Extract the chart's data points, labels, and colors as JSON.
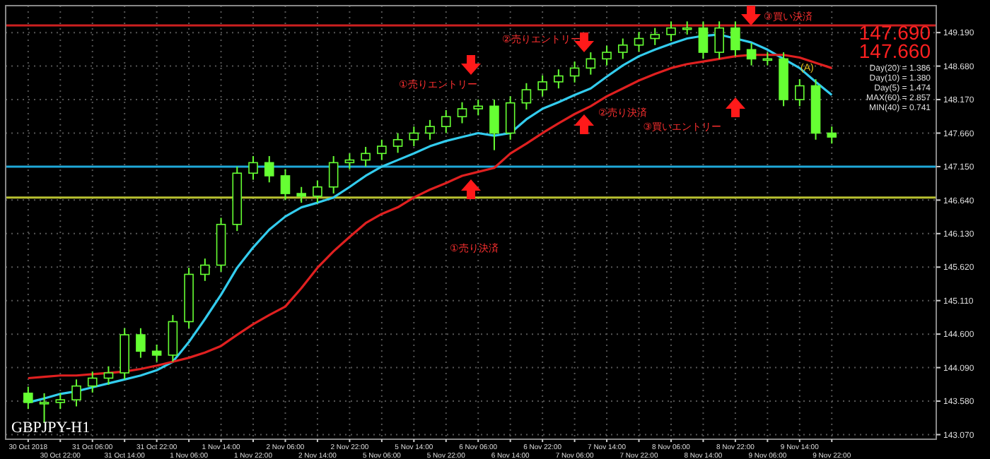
{
  "chart_data": {
    "type": "candlestick",
    "title": "GBPJPY-H1",
    "color": "#66ff33",
    "categories": [
      "30 Oct 2018",
      null,
      "30 Oct 22:00",
      null,
      "31 Oct 06:00",
      null,
      "31 Oct 14:00",
      null,
      "31 Oct 22:00",
      null,
      "1 Nov 06:00",
      null,
      "1 Nov 14:00",
      null,
      "1 Nov 22:00",
      null,
      "2 Nov 06:00",
      null,
      "2 Nov 14:00",
      null,
      "2 Nov 22:00",
      null,
      "5 Nov 06:00",
      null,
      "5 Nov 14:00",
      null,
      "5 Nov 22:00",
      null,
      "6 Nov 06:00",
      null,
      "6 Nov 14:00",
      null,
      "6 Nov 22:00",
      null,
      "7 Nov 06:00",
      null,
      "7 Nov 14:00",
      null,
      "7 Nov 22:00",
      null,
      "8 Nov 06:00",
      null,
      "8 Nov 14:00",
      null,
      "8 Nov 22:00",
      null,
      "9 Nov 06:00",
      null,
      "9 Nov 14:00",
      null,
      "9 Nov 22:00",
      null,
      null,
      null,
      null,
      null,
      null
    ],
    "ohlc": [
      [
        143.7,
        143.8,
        143.46,
        143.56
      ],
      [
        143.56,
        143.7,
        143.25,
        143.56
      ],
      [
        143.56,
        143.7,
        143.46,
        143.6
      ],
      [
        143.6,
        143.91,
        143.5,
        143.81
      ],
      [
        143.81,
        144.03,
        143.71,
        143.93
      ],
      [
        143.93,
        144.11,
        143.83,
        144.01
      ],
      [
        144.01,
        144.69,
        143.91,
        144.59
      ],
      [
        144.59,
        144.69,
        144.24,
        144.34
      ],
      [
        144.34,
        144.44,
        144.18,
        144.28
      ],
      [
        144.28,
        144.89,
        144.18,
        144.79
      ],
      [
        144.79,
        145.61,
        144.69,
        145.51
      ],
      [
        145.51,
        145.75,
        145.41,
        145.65
      ],
      [
        145.65,
        146.37,
        145.55,
        146.27
      ],
      [
        146.27,
        147.15,
        146.17,
        147.05
      ],
      [
        147.05,
        147.31,
        146.95,
        147.21
      ],
      [
        147.21,
        147.31,
        146.91,
        147.01
      ],
      [
        147.01,
        147.11,
        146.64,
        146.74
      ],
      [
        146.74,
        146.84,
        146.6,
        146.7
      ],
      [
        146.7,
        146.94,
        146.6,
        146.84
      ],
      [
        146.84,
        147.31,
        146.74,
        147.21
      ],
      [
        147.21,
        147.35,
        147.11,
        147.25
      ],
      [
        147.25,
        147.45,
        147.15,
        147.35
      ],
      [
        147.35,
        147.56,
        147.25,
        147.46
      ],
      [
        147.46,
        147.66,
        147.36,
        147.56
      ],
      [
        147.56,
        147.76,
        147.46,
        147.66
      ],
      [
        147.66,
        147.86,
        147.56,
        147.76
      ],
      [
        147.76,
        148.01,
        147.66,
        147.91
      ],
      [
        147.91,
        148.13,
        147.81,
        148.03
      ],
      [
        148.03,
        148.17,
        147.93,
        148.07
      ],
      [
        148.07,
        148.17,
        147.4,
        147.66
      ],
      [
        147.66,
        148.22,
        147.56,
        148.12
      ],
      [
        148.12,
        148.42,
        148.02,
        148.32
      ],
      [
        148.32,
        148.54,
        148.22,
        148.44
      ],
      [
        148.44,
        148.63,
        148.34,
        148.53
      ],
      [
        148.53,
        148.75,
        148.43,
        148.65
      ],
      [
        148.65,
        148.89,
        148.55,
        148.79
      ],
      [
        148.79,
        148.99,
        148.69,
        148.89
      ],
      [
        148.89,
        149.1,
        148.79,
        149.0
      ],
      [
        149.0,
        149.2,
        148.9,
        149.1
      ],
      [
        149.1,
        149.26,
        149.0,
        149.16
      ],
      [
        149.16,
        149.36,
        149.06,
        149.26
      ],
      [
        149.26,
        149.36,
        149.16,
        149.26
      ],
      [
        149.26,
        149.36,
        148.79,
        148.89
      ],
      [
        148.89,
        149.36,
        148.79,
        149.26
      ],
      [
        149.26,
        149.36,
        148.83,
        148.93
      ],
      [
        148.93,
        149.03,
        148.69,
        148.79
      ],
      [
        148.79,
        148.89,
        148.69,
        148.79
      ],
      [
        148.79,
        148.89,
        148.07,
        148.17
      ],
      [
        148.17,
        148.48,
        148.07,
        148.38
      ],
      [
        148.38,
        148.48,
        147.56,
        147.66
      ],
      [
        147.66,
        147.76,
        147.5,
        147.6
      ],
      null,
      null,
      null,
      null,
      null,
      null
    ],
    "series": [
      {
        "type": "line",
        "color": "#33ccee",
        "values": [
          143.56,
          143.62,
          143.69,
          143.73,
          143.79,
          143.85,
          143.91,
          143.97,
          144.05,
          144.18,
          144.48,
          144.83,
          145.2,
          145.61,
          145.92,
          146.19,
          146.39,
          146.53,
          146.6,
          146.68,
          146.84,
          147.01,
          147.15,
          147.25,
          147.35,
          147.46,
          147.54,
          147.6,
          147.66,
          147.62,
          147.66,
          147.87,
          148.03,
          148.13,
          148.24,
          148.34,
          148.52,
          148.69,
          148.83,
          148.93,
          149.02,
          149.1,
          149.14,
          149.16,
          149.1,
          149.04,
          148.93,
          148.79,
          148.65,
          148.44,
          148.24,
          null,
          null,
          null,
          null,
          null,
          null
        ]
      },
      {
        "type": "line",
        "color": "#e02020",
        "values": [
          143.93,
          143.95,
          143.97,
          143.97,
          143.99,
          144.01,
          144.03,
          144.07,
          144.12,
          144.18,
          144.24,
          144.32,
          144.42,
          144.59,
          144.75,
          144.89,
          145.02,
          145.3,
          145.61,
          145.86,
          146.08,
          146.29,
          146.43,
          146.53,
          146.68,
          146.8,
          146.9,
          147.01,
          147.07,
          147.13,
          147.35,
          147.5,
          147.66,
          147.81,
          147.95,
          148.07,
          148.22,
          148.34,
          148.46,
          148.56,
          148.65,
          148.71,
          148.75,
          148.79,
          148.83,
          148.85,
          148.85,
          148.85,
          148.81,
          148.73,
          148.65,
          null,
          null,
          null,
          null,
          null,
          null
        ]
      }
    ],
    "ylim": [
      143.0,
      149.6
    ],
    "yticks": [
      {
        "value": 143.07,
        "label": "143.070"
      },
      {
        "value": 143.58,
        "label": "143.580"
      },
      {
        "value": 144.09,
        "label": "144.090"
      },
      {
        "value": 144.6,
        "label": "144.600"
      },
      {
        "value": 145.11,
        "label": "145.110"
      },
      {
        "value": 145.62,
        "label": "145.620"
      },
      {
        "value": 146.13,
        "label": "146.130"
      },
      {
        "value": 146.64,
        "label": "146.640"
      },
      {
        "value": 147.15,
        "label": "147.150"
      },
      {
        "value": 147.66,
        "label": "147.660"
      },
      {
        "value": 148.17,
        "label": "148.170"
      },
      {
        "value": 148.68,
        "label": "148.680"
      },
      {
        "value": 149.19,
        "label": "149.190"
      }
    ],
    "grid": true,
    "ref_lines": [
      {
        "axis": "y",
        "value": 149.3,
        "color": "#cc2020"
      },
      {
        "axis": "y",
        "value": 147.15,
        "color": "#1fa8d8"
      },
      {
        "axis": "y",
        "value": 146.68,
        "color": "#b8c030"
      }
    ],
    "annotations": [
      "①売りエントリー",
      "①売り決済",
      "②売りエントリー",
      "②売り決済",
      "③買いエントリー",
      "③買い決済",
      "(A)",
      "147.690",
      "147.660",
      "Day(20) = 1.386",
      "Day(10) = 1.380",
      "Day(5) = 1.474",
      "MAX(60) = 2.857",
      "MIN(40) = 0.741"
    ]
  }
}
